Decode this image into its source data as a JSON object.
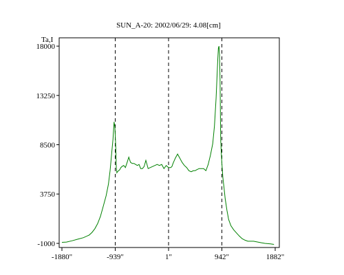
{
  "chart_data": {
    "type": "line",
    "title": "SUN_A-20: 2002/06/29: 4.08[cm]",
    "ylabel": "Ta,I",
    "xlabel": "",
    "xlim": [
      -1880,
      1882
    ],
    "ylim": [
      -1400,
      18800
    ],
    "x_ticks": [
      -1880,
      -939,
      1,
      942,
      1882
    ],
    "x_tick_labels": [
      "-1880\"",
      "-939\"",
      "1\"",
      "942\"",
      "1882\""
    ],
    "y_ticks": [
      -1000,
      3750,
      8500,
      13250,
      18000
    ],
    "y_tick_labels": [
      "-1000",
      "3750",
      "8500",
      "13250",
      "18000"
    ],
    "reference_lines_x": [
      -939,
      1,
      942
    ],
    "grid": false,
    "series_color": "#008000",
    "series": [
      {
        "x": [
          -1880,
          -1800,
          -1700,
          -1600,
          -1500,
          -1400,
          -1350,
          -1300,
          -1250,
          -1200,
          -1150,
          -1100,
          -1060,
          -1030,
          -1000,
          -980,
          -960,
          -945,
          -930,
          -920,
          -910,
          -900,
          -880,
          -860,
          -840,
          -820,
          -790,
          -760,
          -730,
          -700,
          -670,
          -640,
          -610,
          -580,
          -550,
          -520,
          -490,
          -460,
          -430,
          -400,
          -360,
          -320,
          -280,
          -240,
          -200,
          -160,
          -120,
          -80,
          -40,
          0,
          40,
          60,
          80,
          120,
          160,
          200,
          240,
          280,
          320,
          360,
          400,
          420,
          440,
          470,
          500,
          540,
          580,
          620,
          660,
          700,
          740,
          780,
          810,
          840,
          860,
          870,
          880,
          890,
          900,
          910,
          920,
          940,
          960,
          980,
          1000,
          1030,
          1060,
          1100,
          1150,
          1200,
          1250,
          1300,
          1350,
          1400,
          1500,
          1600,
          1700,
          1800,
          1860
        ],
        "y": [
          -900,
          -880,
          -750,
          -600,
          -450,
          -200,
          50,
          400,
          900,
          1600,
          2600,
          3600,
          4700,
          6000,
          7800,
          9000,
          10700,
          10200,
          8200,
          6300,
          5800,
          5900,
          6000,
          6100,
          6300,
          6400,
          6500,
          6300,
          6800,
          7300,
          6800,
          6700,
          6700,
          6600,
          6500,
          6600,
          6200,
          6200,
          6400,
          7000,
          6200,
          6300,
          6400,
          6500,
          6600,
          6500,
          6600,
          6200,
          6500,
          6300,
          6300,
          6400,
          6700,
          7200,
          7600,
          7200,
          6800,
          6500,
          6300,
          6000,
          5900,
          5950,
          6000,
          6000,
          6100,
          6200,
          6200,
          6200,
          6000,
          6600,
          7500,
          8600,
          10300,
          13000,
          15600,
          16800,
          17800,
          18000,
          17200,
          14600,
          9000,
          6800,
          5300,
          4300,
          3300,
          2200,
          1300,
          700,
          300,
          0,
          -300,
          -550,
          -700,
          -800,
          -800,
          -900,
          -1000,
          -1050,
          -1100
        ]
      }
    ]
  }
}
